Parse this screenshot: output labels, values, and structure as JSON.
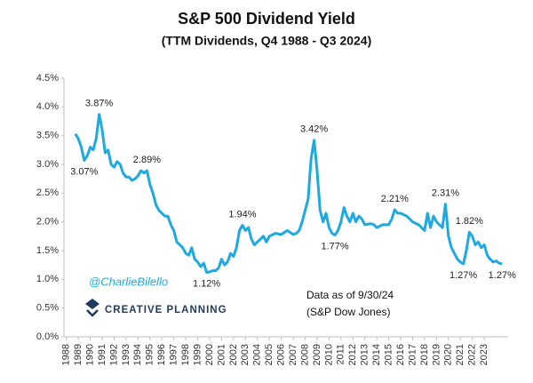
{
  "chart_data": {
    "type": "line",
    "title": "S&P 500 Dividend Yield",
    "subtitle": "(TTM Dividends, Q4 1988 - Q3 2024)",
    "x": [
      1988.75,
      1989.0,
      1989.25,
      1989.5,
      1989.75,
      1990.0,
      1990.25,
      1990.5,
      1990.75,
      1991.0,
      1991.25,
      1991.5,
      1991.75,
      1992.0,
      1992.25,
      1992.5,
      1992.75,
      1993.0,
      1993.25,
      1993.5,
      1993.75,
      1994.0,
      1994.25,
      1994.5,
      1994.75,
      1995.0,
      1995.25,
      1995.5,
      1995.75,
      1996.0,
      1996.25,
      1996.5,
      1996.75,
      1997.0,
      1997.25,
      1997.5,
      1997.75,
      1998.0,
      1998.25,
      1998.5,
      1998.75,
      1999.0,
      1999.25,
      1999.5,
      1999.75,
      2000.0,
      2000.25,
      2000.5,
      2000.75,
      2001.0,
      2001.25,
      2001.5,
      2001.75,
      2002.0,
      2002.25,
      2002.5,
      2002.75,
      2003.0,
      2003.25,
      2003.5,
      2003.75,
      2004.0,
      2004.25,
      2004.5,
      2004.75,
      2005.0,
      2005.5,
      2006.0,
      2006.5,
      2007.0,
      2007.25,
      2007.5,
      2007.75,
      2008.0,
      2008.25,
      2008.5,
      2008.75,
      2009.0,
      2009.25,
      2009.5,
      2009.75,
      2010.0,
      2010.25,
      2010.5,
      2010.75,
      2011.0,
      2011.25,
      2011.5,
      2011.75,
      2012.0,
      2012.25,
      2012.5,
      2012.75,
      2013.0,
      2013.5,
      2013.75,
      2014.0,
      2014.5,
      2015.0,
      2015.25,
      2015.5,
      2015.75,
      2016.0,
      2016.5,
      2017.0,
      2017.5,
      2017.75,
      2018.0,
      2018.25,
      2018.5,
      2018.75,
      2019.0,
      2019.25,
      2019.5,
      2019.75,
      2020.0,
      2020.25,
      2020.5,
      2020.75,
      2021.0,
      2021.25,
      2021.5,
      2021.75,
      2022.0,
      2022.25,
      2022.5,
      2022.75,
      2023.0,
      2023.25,
      2023.5,
      2023.75,
      2024.0,
      2024.25,
      2024.5
    ],
    "series": [
      {
        "name": "S&P 500 Dividend Yield",
        "color": "#1fa9e1",
        "values": [
          3.53,
          3.45,
          3.3,
          3.07,
          3.15,
          3.3,
          3.25,
          3.45,
          3.87,
          3.6,
          3.2,
          3.25,
          3.0,
          2.95,
          3.05,
          3.0,
          2.85,
          2.78,
          2.78,
          2.72,
          2.75,
          2.8,
          2.89,
          2.85,
          2.89,
          2.65,
          2.5,
          2.3,
          2.2,
          2.15,
          2.1,
          2.1,
          1.95,
          1.85,
          1.65,
          1.6,
          1.55,
          1.45,
          1.42,
          1.55,
          1.35,
          1.3,
          1.22,
          1.28,
          1.12,
          1.13,
          1.15,
          1.15,
          1.2,
          1.35,
          1.25,
          1.3,
          1.45,
          1.4,
          1.55,
          1.85,
          1.94,
          1.85,
          1.9,
          1.7,
          1.6,
          1.65,
          1.7,
          1.75,
          1.65,
          1.75,
          1.8,
          1.78,
          1.85,
          1.78,
          1.8,
          1.85,
          2.0,
          2.2,
          2.4,
          3.1,
          3.42,
          2.9,
          2.2,
          2.0,
          2.15,
          1.9,
          1.8,
          1.77,
          1.85,
          2.0,
          2.25,
          2.1,
          2.0,
          2.15,
          2.0,
          2.1,
          2.05,
          1.95,
          1.97,
          1.95,
          1.9,
          1.95,
          1.95,
          2.05,
          2.21,
          2.15,
          2.15,
          2.1,
          2.0,
          1.95,
          1.9,
          1.85,
          2.15,
          1.9,
          2.1,
          2.0,
          1.95,
          1.9,
          2.31,
          1.75,
          1.55,
          1.45,
          1.35,
          1.3,
          1.27,
          1.5,
          1.82,
          1.75,
          1.6,
          1.65,
          1.55,
          1.6,
          1.42,
          1.35,
          1.3,
          1.32,
          1.28,
          1.27
        ]
      }
    ],
    "xlim": [
      1987.8,
      2025
    ],
    "xticks": [
      1988,
      1989,
      1990,
      1991,
      1992,
      1993,
      1994,
      1995,
      1996,
      1997,
      1998,
      1999,
      2000,
      2001,
      2002,
      2003,
      2004,
      2005,
      2006,
      2007,
      2008,
      2009,
      2010,
      2011,
      2012,
      2013,
      2014,
      2015,
      2016,
      2017,
      2018,
      2019,
      2020,
      2021,
      2022,
      2023
    ],
    "ylim": [
      0,
      4.5
    ],
    "yticks": [
      {
        "value": 0,
        "label": "0.0%"
      },
      {
        "value": 0.5,
        "label": "0.5%"
      },
      {
        "value": 1,
        "label": "1.0%"
      },
      {
        "value": 1.5,
        "label": "1.5%"
      },
      {
        "value": 2,
        "label": "2.0%"
      },
      {
        "value": 2.5,
        "label": "2.5%"
      },
      {
        "value": 3,
        "label": "3.0%"
      },
      {
        "value": 3.5,
        "label": "3.5%"
      },
      {
        "value": 4,
        "label": "4.0%"
      },
      {
        "value": 4.5,
        "label": "4.5%"
      }
    ],
    "grid": false,
    "annotations": [
      {
        "label": "3.87%",
        "x": 1990.75,
        "value": 3.87,
        "position": "above"
      },
      {
        "label": "3.07%",
        "x": 1989.5,
        "value": 3.07,
        "position": "below"
      },
      {
        "label": "2.89%",
        "x": 1994.75,
        "value": 2.89,
        "position": "above"
      },
      {
        "label": "1.12%",
        "x": 1999.75,
        "value": 1.12,
        "position": "below"
      },
      {
        "label": "1.94%",
        "x": 2002.75,
        "value": 1.94,
        "position": "above"
      },
      {
        "label": "3.42%",
        "x": 2008.75,
        "value": 3.42,
        "position": "above"
      },
      {
        "label": "1.77%",
        "x": 2010.5,
        "value": 1.77,
        "position": "below"
      },
      {
        "label": "2.21%",
        "x": 2015.5,
        "value": 2.21,
        "position": "above"
      },
      {
        "label": "2.31%",
        "x": 2019.75,
        "value": 2.31,
        "position": "above"
      },
      {
        "label": "1.82%",
        "x": 2021.75,
        "value": 1.82,
        "position": "above"
      },
      {
        "label": "1.27%",
        "x": 2021.25,
        "value": 1.27,
        "position": "below"
      },
      {
        "label": "1.27%",
        "x": 2024.5,
        "value": 1.27,
        "position": "below"
      }
    ],
    "watermark": "@CharlieBilello",
    "logo": "CREATIVE PLANNING",
    "notes": [
      "Data as of 9/30/24",
      "(S&P Dow Jones)"
    ]
  }
}
